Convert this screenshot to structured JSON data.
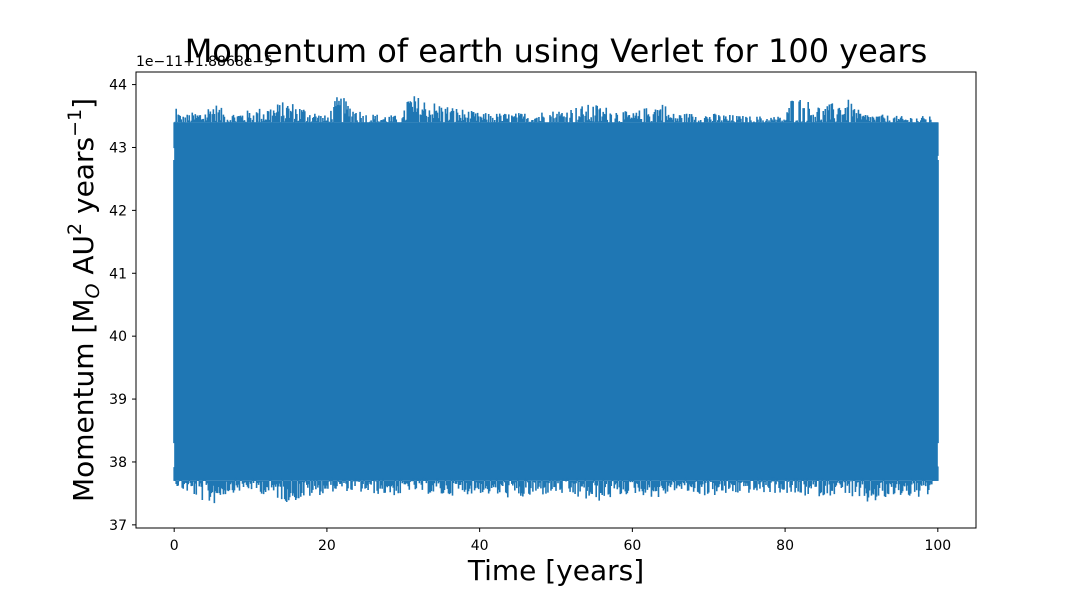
{
  "chart_data": {
    "type": "line",
    "title": "Momentum of earth using Verlet for 100 years",
    "xlabel": "Time [years]",
    "ylabel": {
      "prefix": "Momentum [M",
      "sub": "O",
      "middle": " AU",
      "sup1": "2",
      "middle2": " years",
      "sup2": "−1",
      "suffix": "]"
    },
    "offset_text": "1e−11+1.8868e−5",
    "xlim": [
      -5,
      105
    ],
    "ylim": [
      36.95,
      44.2
    ],
    "x_ticks": [
      0,
      20,
      40,
      60,
      80,
      100
    ],
    "y_ticks": [
      37,
      38,
      39,
      40,
      41,
      42,
      43,
      44
    ],
    "x_tick_labels": [
      "0",
      "20",
      "40",
      "60",
      "80",
      "100"
    ],
    "y_tick_labels": [
      "37",
      "38",
      "39",
      "40",
      "41",
      "42",
      "43",
      "44"
    ],
    "grid": false,
    "series": [
      {
        "color": "#1f77b4",
        "x_range": [
          0,
          100
        ],
        "band_low": 37.7,
        "band_high": 43.4,
        "y_min": 37.3,
        "y_max": 43.87,
        "envelope": {
          "x": [
            0,
            0.2,
            0.5,
            1,
            2,
            4,
            5,
            7,
            10,
            15,
            20,
            21.5,
            25,
            30,
            30.5,
            35,
            40,
            45,
            50,
            55,
            60,
            64,
            65,
            70,
            75,
            80,
            81,
            85,
            88,
            90,
            95,
            99,
            100
          ],
          "high": [
            42.8,
            43.78,
            43.6,
            43.5,
            43.55,
            43.6,
            43.75,
            43.55,
            43.6,
            43.75,
            43.5,
            43.85,
            43.55,
            43.5,
            43.87,
            43.7,
            43.55,
            43.55,
            43.6,
            43.7,
            43.55,
            43.75,
            43.55,
            43.55,
            43.5,
            43.5,
            43.85,
            43.65,
            43.8,
            43.55,
            43.5,
            43.5,
            42.8
          ],
          "low": [
            38.3,
            37.6,
            37.6,
            37.55,
            37.5,
            37.35,
            37.3,
            37.5,
            37.55,
            37.35,
            37.5,
            37.55,
            37.5,
            37.45,
            37.55,
            37.45,
            37.5,
            37.4,
            37.5,
            37.35,
            37.5,
            37.4,
            37.55,
            37.45,
            37.5,
            37.5,
            37.45,
            37.45,
            37.5,
            37.3,
            37.45,
            37.4,
            38.3
          ]
        }
      }
    ]
  }
}
